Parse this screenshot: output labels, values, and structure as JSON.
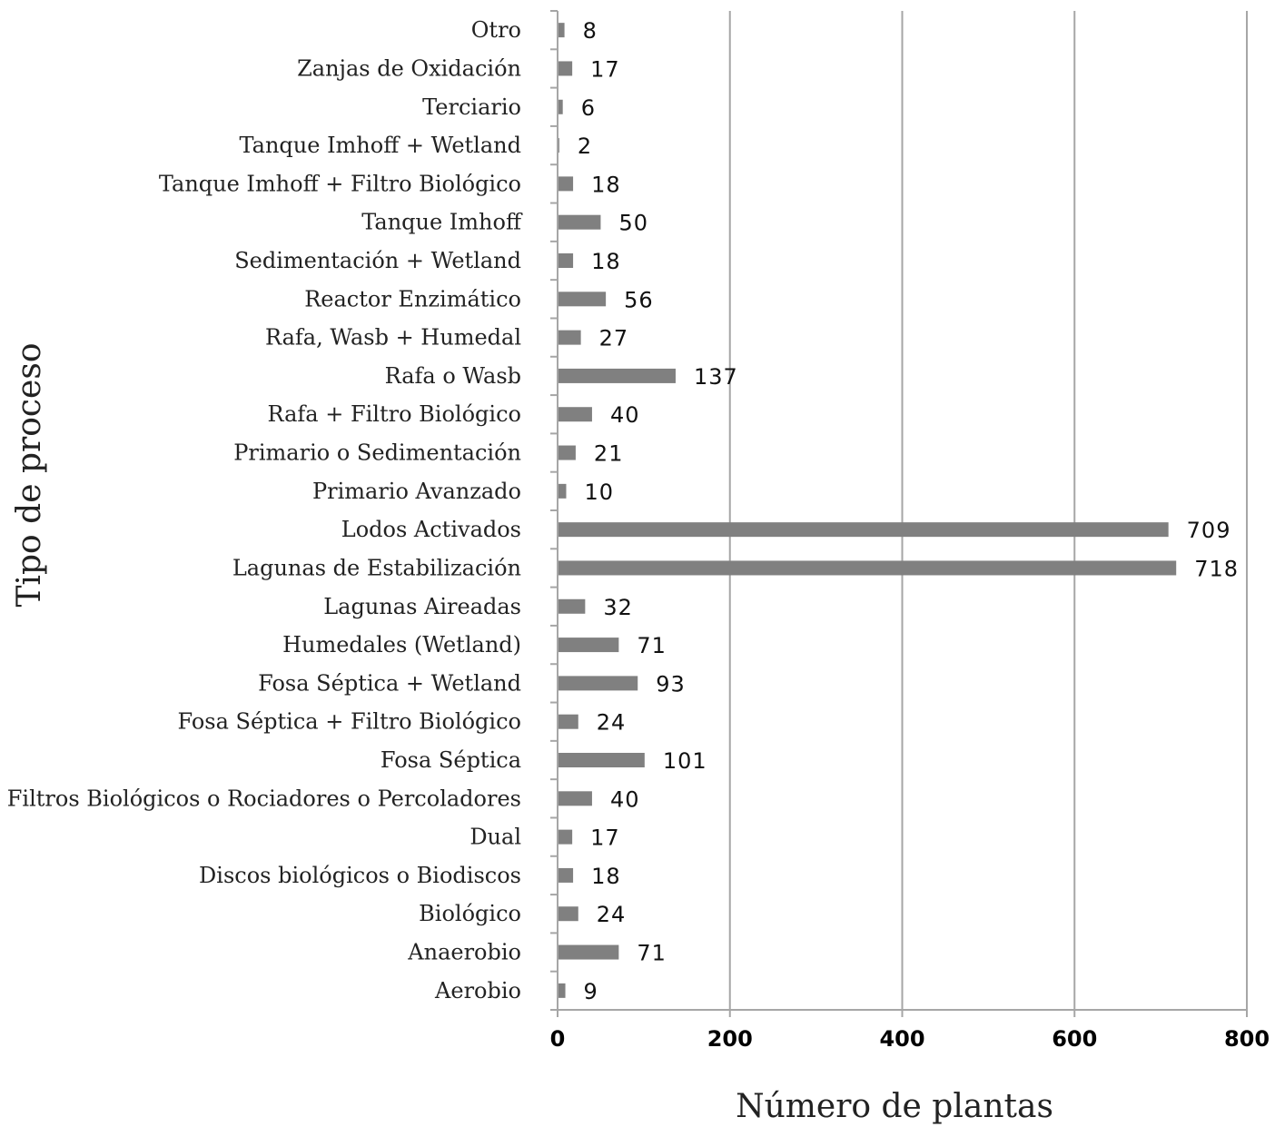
{
  "chart_data": {
    "type": "bar",
    "orientation": "horizontal",
    "xlabel": "Número de plantas",
    "ylabel": "Tipo de proceso",
    "xlim": [
      0,
      800
    ],
    "xticks": [
      0,
      200,
      400,
      600,
      800
    ],
    "grid": "vertical",
    "bar_color": "#808080",
    "categories": [
      "Otro",
      "Zanjas de Oxidación",
      "Terciario",
      "Tanque Imhoff + Wetland",
      "Tanque Imhoff + Filtro Biológico",
      "Tanque Imhoff",
      "Sedimentación + Wetland",
      "Reactor Enzimático",
      "Rafa, Wasb + Humedal",
      "Rafa o Wasb",
      "Rafa + Filtro Biológico",
      "Primario o Sedimentación",
      "Primario Avanzado",
      "Lodos Activados",
      "Lagunas de Estabilización",
      "Lagunas Aireadas",
      "Humedales (Wetland)",
      "Fosa Séptica + Wetland",
      "Fosa Séptica + Filtro Biológico",
      "Fosa Séptica",
      "Filtros Biológicos o Rociadores o Percoladores",
      "Dual",
      "Discos biológicos o Biodiscos",
      "Biológico",
      "Anaerobio",
      "Aerobio"
    ],
    "values": [
      8,
      17,
      6,
      2,
      18,
      50,
      18,
      56,
      27,
      137,
      40,
      21,
      10,
      709,
      718,
      32,
      71,
      93,
      24,
      101,
      40,
      17,
      18,
      24,
      71,
      9
    ]
  }
}
